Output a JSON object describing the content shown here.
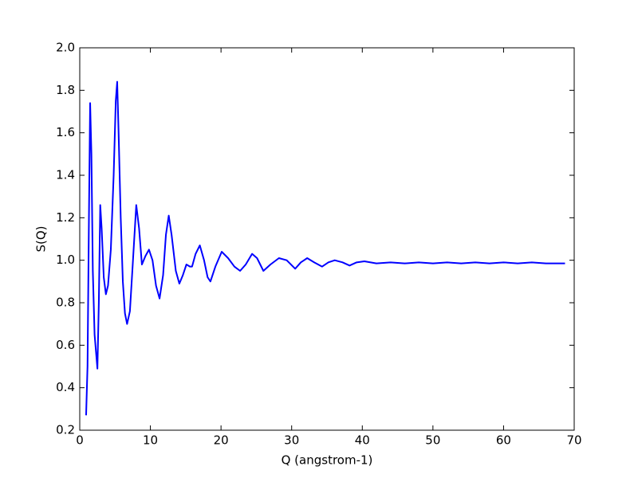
{
  "chart_data": {
    "type": "line",
    "xlabel": "Q (angstrom-1)",
    "ylabel": "S(Q)",
    "color": "#0000ff",
    "x": [
      0.9,
      1.1,
      1.3,
      1.47,
      1.65,
      1.85,
      2.1,
      2.5,
      2.7,
      2.9,
      3.1,
      3.4,
      3.7,
      4.0,
      4.4,
      4.8,
      5.1,
      5.3,
      5.5,
      5.8,
      6.1,
      6.4,
      6.7,
      7.1,
      7.5,
      8.0,
      8.4,
      8.8,
      9.3,
      9.8,
      10.3,
      10.8,
      11.3,
      11.8,
      12.2,
      12.6,
      13.0,
      13.6,
      14.1,
      14.6,
      15.1,
      15.6,
      15.9,
      16.4,
      17.0,
      17.6,
      18.1,
      18.5,
      19.2,
      20.1,
      21.0,
      21.9,
      22.7,
      23.5,
      24.4,
      25.1,
      26.0,
      27.0,
      28.2,
      29.3,
      30.5,
      31.3,
      32.2,
      33.2,
      34.3,
      35.2,
      36.1,
      37.2,
      38.2,
      39.2,
      40.3,
      42,
      44,
      46,
      48,
      50,
      52,
      54,
      56,
      58,
      60,
      62,
      64,
      66,
      68.7
    ],
    "values": [
      0.27,
      0.5,
      1.2,
      1.74,
      1.5,
      0.95,
      0.65,
      0.49,
      0.8,
      1.26,
      1.15,
      0.92,
      0.84,
      0.88,
      1.05,
      1.4,
      1.75,
      1.84,
      1.6,
      1.2,
      0.9,
      0.75,
      0.7,
      0.76,
      0.98,
      1.26,
      1.15,
      0.98,
      1.02,
      1.05,
      1.0,
      0.88,
      0.82,
      0.93,
      1.12,
      1.21,
      1.12,
      0.95,
      0.89,
      0.93,
      0.98,
      0.97,
      0.97,
      1.03,
      1.07,
      1.0,
      0.92,
      0.9,
      0.97,
      1.04,
      1.01,
      0.97,
      0.95,
      0.98,
      1.03,
      1.01,
      0.95,
      0.98,
      1.01,
      1.0,
      0.96,
      0.99,
      1.01,
      0.99,
      0.97,
      0.99,
      1.0,
      0.99,
      0.975,
      0.99,
      0.995,
      0.985,
      0.99,
      0.985,
      0.99,
      0.985,
      0.99,
      0.985,
      0.99,
      0.985,
      0.99,
      0.985,
      0.99,
      0.985,
      0.985
    ],
    "xlim": [
      0,
      70
    ],
    "xticks": [
      0,
      10,
      20,
      30,
      40,
      50,
      60,
      70
    ],
    "ylim": [
      0.2,
      2.0
    ],
    "yticks": [
      0.2,
      0.4,
      0.6,
      0.8,
      {
        "value": 1.0,
        "label": "1.0"
      },
      1.2,
      1.4,
      1.6,
      1.8,
      {
        "value": 2.0,
        "label": "2.0"
      }
    ]
  }
}
